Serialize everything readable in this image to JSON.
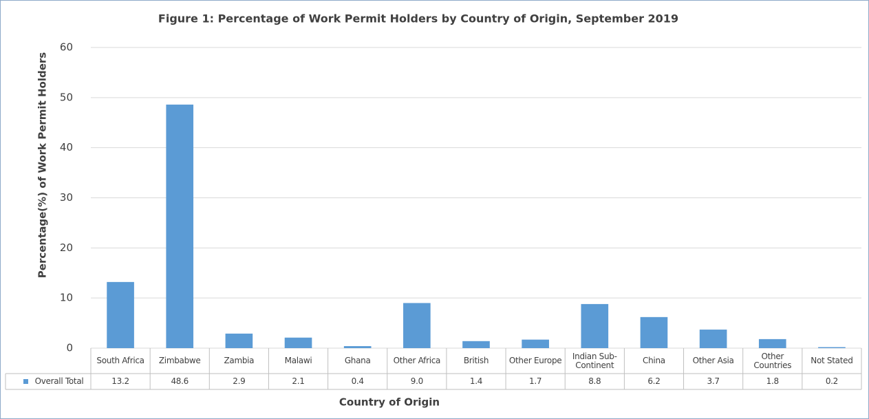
{
  "chart_data": {
    "type": "bar",
    "title": "Figure 1: Percentage of Work Permit Holders by Country of Origin, September 2019",
    "x_label": "Country of Origin",
    "y_label": "Percentage(%) of Work Permit Holders",
    "categories": [
      "South Africa",
      "Zimbabwe",
      "Zambia",
      "Malawi",
      "Ghana",
      "Other Africa",
      "British",
      "Other Europe",
      "Indian Sub-Continent",
      "China",
      "Other Asia",
      "Other Countries",
      "Not Stated"
    ],
    "series": [
      {
        "name": "Overall Total",
        "color": "#5b9bd5",
        "values": [
          13.2,
          48.6,
          2.9,
          2.1,
          0.4,
          9.0,
          1.4,
          1.7,
          8.8,
          6.2,
          3.7,
          1.8,
          0.2
        ],
        "value_labels": [
          "13.2",
          "48.6",
          "2.9",
          "2.1",
          "0.4",
          "9.0",
          "1.4",
          "1.7",
          "8.8",
          "6.2",
          "3.7",
          "1.8",
          "0.2"
        ]
      }
    ],
    "ylim": [
      0,
      60
    ],
    "yticks": [
      0,
      10,
      20,
      30,
      40,
      50,
      60
    ],
    "grid": true
  }
}
